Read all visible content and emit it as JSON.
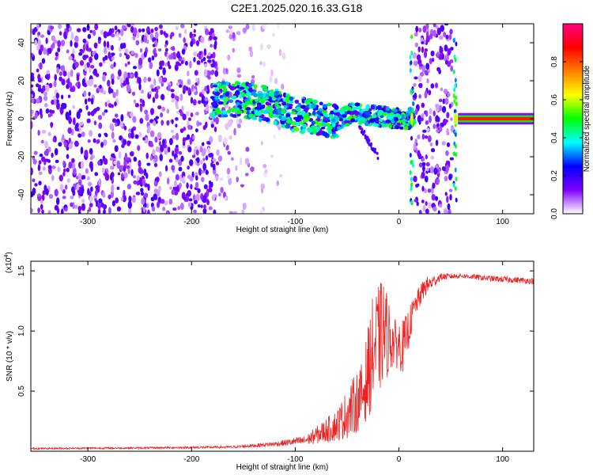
{
  "title": "C2E1.2025.020.16.33.G18",
  "chart_data": [
    {
      "type": "heatmap",
      "xlabel": "Height of straight line (km)",
      "ylabel": "Frequency (Hz)",
      "xlim": [
        -355,
        130
      ],
      "ylim": [
        -50,
        50
      ],
      "xticks": [
        -300,
        -200,
        -100,
        0,
        100
      ],
      "xtick_labels": [
        "-300",
        "-200",
        "-100",
        "0",
        "100"
      ],
      "yticks": [
        40,
        20,
        0,
        -20,
        -40
      ],
      "ytick_labels": [
        "40",
        "20",
        "0",
        "-20",
        "-40"
      ],
      "colorbar": {
        "label": "Normalized spectral amplitude",
        "range": [
          0.0,
          1.0
        ],
        "ticks": [
          0.0,
          0.2,
          0.4,
          0.6,
          0.8
        ],
        "tick_labels": [
          "0.0",
          "0.2",
          "0.4",
          "0.6",
          "0.8"
        ],
        "colormap": [
          "#ffffff",
          "#7f00ff",
          "#0000ff",
          "#00ffff",
          "#00ff00",
          "#ffff00",
          "#ff7f00",
          "#ff0000",
          "#ff0080"
        ]
      },
      "regions": [
        {
          "x_range": [
            -355,
            -175
          ],
          "kind": "noise",
          "amplitude": 0.15
        },
        {
          "x_range": [
            -175,
            -140
          ],
          "kind": "sparse-noise",
          "amplitude": 0.08
        },
        {
          "x_range": [
            -140,
            -110
          ],
          "kind": "faint-noise",
          "amplitude": 0.04
        },
        {
          "x_range": [
            -180,
            15
          ],
          "kind": "signal-band",
          "center_hz": [
            [
              -180,
              10
            ],
            [
              -150,
              10
            ],
            [
              -120,
              7
            ],
            [
              -100,
              2
            ],
            [
              -80,
              1
            ],
            [
              -60,
              -1
            ],
            [
              -45,
              3
            ],
            [
              -30,
              2
            ],
            [
              -15,
              1
            ],
            [
              0,
              0
            ],
            [
              10,
              0
            ]
          ],
          "amplitude": 0.45
        },
        {
          "x_range": [
            10,
            15
          ],
          "kind": "spike",
          "amplitude": 0.5
        },
        {
          "x_range": [
            15,
            52
          ],
          "kind": "noise",
          "amplitude": 0.15
        },
        {
          "x_range": [
            52,
            57
          ],
          "kind": "spike",
          "amplitude": 0.5
        },
        {
          "x_range": [
            57,
            130
          ],
          "kind": "tone",
          "center_hz": 0,
          "amplitude": 1.0
        }
      ]
    },
    {
      "type": "line",
      "xlabel": "Height of straight line (km)",
      "ylabel": "SNR (10 * v/v)",
      "y_multiplier": "(x10",
      "y_multiplier_exp": "4",
      "y_multiplier_close": ")",
      "xlim": [
        -355,
        130
      ],
      "ylim": [
        0,
        1.58
      ],
      "xticks": [
        -300,
        -200,
        -100,
        0,
        100
      ],
      "xtick_labels": [
        "-300",
        "-200",
        "-100",
        "0",
        "100"
      ],
      "yticks": [
        0.5,
        1.0,
        1.5
      ],
      "ytick_labels": [
        "0.5",
        "1.0",
        "1.5"
      ],
      "color": "#ee2222",
      "envelope": [
        {
          "x": -355,
          "low": 0.015,
          "high": 0.03
        },
        {
          "x": -250,
          "low": 0.02,
          "high": 0.035
        },
        {
          "x": -160,
          "low": 0.025,
          "high": 0.045
        },
        {
          "x": -120,
          "low": 0.04,
          "high": 0.08
        },
        {
          "x": -90,
          "low": 0.05,
          "high": 0.13
        },
        {
          "x": -60,
          "low": 0.08,
          "high": 0.35
        },
        {
          "x": -45,
          "low": 0.12,
          "high": 0.6
        },
        {
          "x": -35,
          "low": 0.2,
          "high": 0.75
        },
        {
          "x": -25,
          "low": 0.35,
          "high": 1.3
        },
        {
          "x": -15,
          "low": 0.55,
          "high": 1.45
        },
        {
          "x": -5,
          "low": 0.7,
          "high": 1.1
        },
        {
          "x": 5,
          "low": 0.65,
          "high": 1.1
        },
        {
          "x": 15,
          "low": 1.1,
          "high": 1.3
        },
        {
          "x": 25,
          "low": 1.28,
          "high": 1.45
        },
        {
          "x": 40,
          "low": 1.42,
          "high": 1.48
        },
        {
          "x": 60,
          "low": 1.44,
          "high": 1.48
        },
        {
          "x": 90,
          "low": 1.41,
          "high": 1.46
        },
        {
          "x": 130,
          "low": 1.39,
          "high": 1.44
        }
      ]
    }
  ]
}
